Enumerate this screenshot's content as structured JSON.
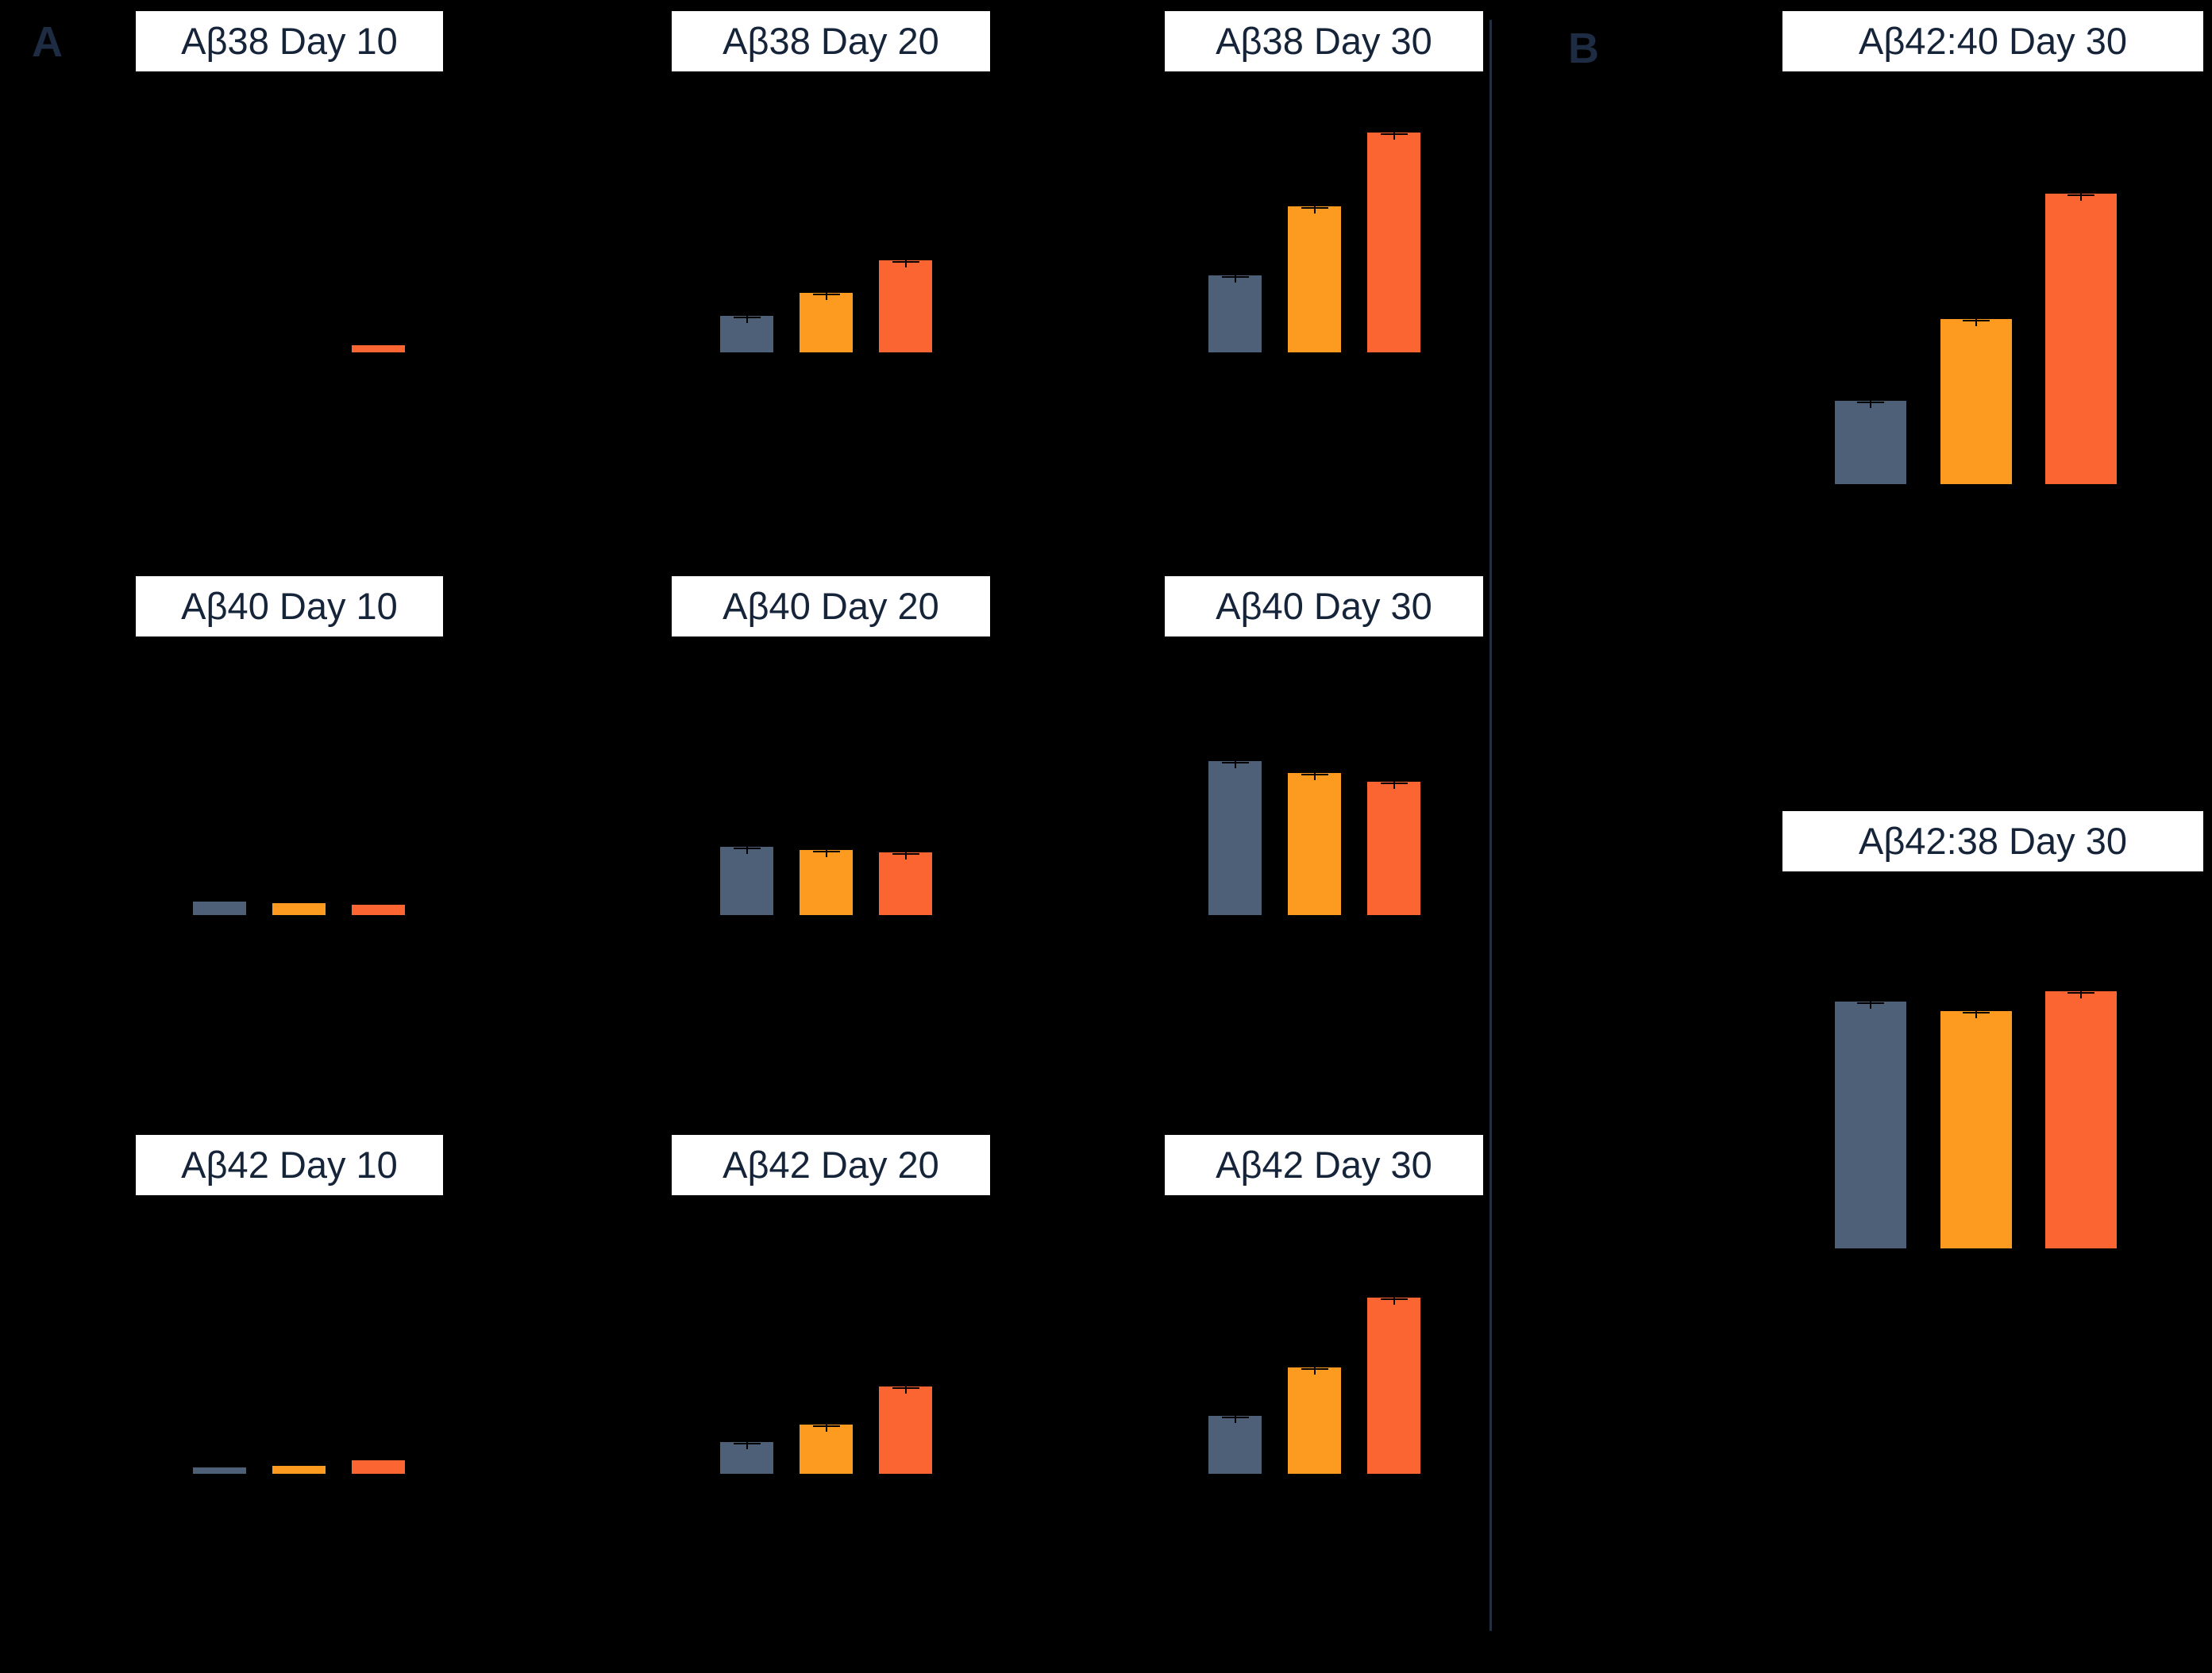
{
  "section_labels": {
    "a": "A",
    "b": "B"
  },
  "colors": {
    "background": "#000000",
    "title_bg": "#ffffff",
    "title_text": "#16243a",
    "section_label_text": "#1d2c42",
    "divider": "#232e3e",
    "series": [
      "#4e5f78",
      "#fd9a20",
      "#fb6531"
    ],
    "error_bar": "#000000"
  },
  "series_names": [
    "slate-bar",
    "orange-bar",
    "red-orange-bar"
  ],
  "value_units": "relative bar heights (no visible axis labels or tick values in image)",
  "chart_data": [
    {
      "type": "bar",
      "title": "Aβ38 Day 10",
      "section": "A",
      "row": 0,
      "col": 0,
      "values": [
        0,
        0,
        9
      ]
    },
    {
      "type": "bar",
      "title": "Aβ38 Day 20",
      "section": "A",
      "row": 0,
      "col": 1,
      "values": [
        46,
        75,
        116
      ]
    },
    {
      "type": "bar",
      "title": "Aβ38 Day 30",
      "section": "A",
      "row": 0,
      "col": 2,
      "values": [
        97,
        184,
        277
      ]
    },
    {
      "type": "bar",
      "title": "Aβ40 Day 10",
      "section": "A",
      "row": 1,
      "col": 0,
      "values": [
        17,
        15,
        13
      ]
    },
    {
      "type": "bar",
      "title": "Aβ40 Day 20",
      "section": "A",
      "row": 1,
      "col": 1,
      "values": [
        86,
        82,
        79
      ]
    },
    {
      "type": "bar",
      "title": "Aβ40 Day 30",
      "section": "A",
      "row": 1,
      "col": 2,
      "values": [
        194,
        179,
        168
      ]
    },
    {
      "type": "bar",
      "title": "Aβ42 Day 10",
      "section": "A",
      "row": 2,
      "col": 0,
      "values": [
        8,
        10,
        17
      ]
    },
    {
      "type": "bar",
      "title": "Aβ42 Day 20",
      "section": "A",
      "row": 2,
      "col": 1,
      "values": [
        40,
        62,
        110
      ]
    },
    {
      "type": "bar",
      "title": "Aβ42 Day 30",
      "section": "A",
      "row": 2,
      "col": 2,
      "values": [
        73,
        134,
        222
      ]
    },
    {
      "type": "bar",
      "title": "Aβ42:40 Day 30",
      "section": "B",
      "row": 0,
      "col": 0,
      "values": [
        105,
        208,
        366
      ]
    },
    {
      "type": "bar",
      "title": "Aβ42:38 Day 30",
      "section": "B",
      "row": 1,
      "col": 0,
      "values": [
        311,
        299,
        324
      ]
    }
  ]
}
